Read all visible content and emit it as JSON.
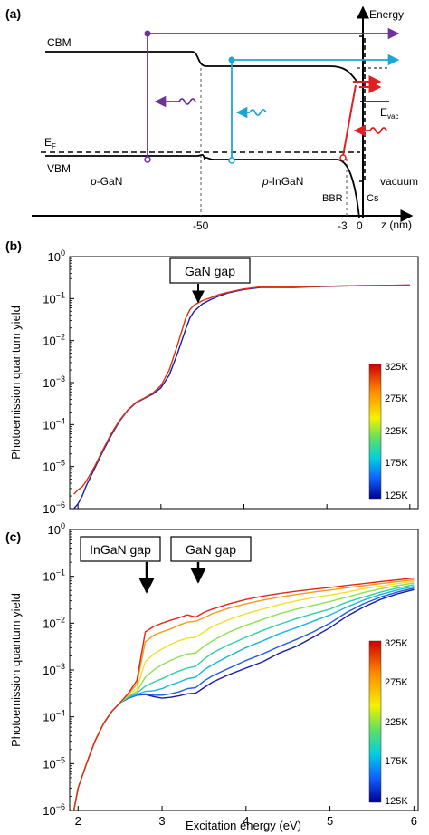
{
  "panel_labels": [
    "(a)",
    "(b)",
    "(c)"
  ],
  "diagram": {
    "band_labels": {
      "cbm": "CBM",
      "vbm": "VBM",
      "fermi_main": "E",
      "fermi_sub": "F"
    },
    "region_labels": {
      "pgan_prefix": "p",
      "pgan_rest": "-GaN",
      "pingan_prefix": "p",
      "pingan_rest": "-InGaN",
      "bbr": "BBR",
      "cs": "Cs",
      "vacuum": "vacuum"
    },
    "energy_axis_label": "Energy",
    "evac_main": "E",
    "evac_sub": "vac",
    "z_axis_label": "z (nm)",
    "z_ticks": [
      "-50",
      "-3",
      "0"
    ],
    "colors": {
      "gan": "#7030a0",
      "ingan": "#1aa7d8",
      "bbr": "#e02020",
      "band": "#000000"
    }
  },
  "chart_data": [
    {
      "type": "line",
      "panel": "(b)",
      "xlabel": "",
      "ylabel": "Photoemission quantum yield",
      "xlim": [
        1.9,
        6.1
      ],
      "ylim": [
        1e-06,
        1
      ],
      "yscale": "log",
      "yticks": [
        "10^-6",
        "10^-5",
        "10^-4",
        "10^-3",
        "10^-2",
        "10^-1",
        "10^0"
      ],
      "annotations": [
        {
          "text": "GaN gap",
          "x": 3.4
        }
      ],
      "colorbar": {
        "labels": [
          "325K",
          "275K",
          "225K",
          "175K",
          "125K"
        ]
      },
      "series": [
        {
          "color": "#1a1aa8",
          "x": [
            1.95,
            2.0,
            2.05,
            2.1,
            2.2,
            2.3,
            2.4,
            2.5,
            2.6,
            2.7,
            2.8,
            2.9,
            3.0,
            3.1,
            3.2,
            3.3,
            3.35,
            3.4,
            3.5,
            3.6,
            3.7,
            3.8,
            3.9,
            4.0,
            4.2,
            4.4,
            4.6,
            4.8,
            5.0,
            5.2,
            5.4,
            5.6,
            5.8,
            6.0
          ],
          "y": [
            1e-06,
            1.3e-06,
            2e-06,
            3.5e-06,
            9e-06,
            2.3e-05,
            5.5e-05,
            0.00012,
            0.00022,
            0.00033,
            0.00042,
            0.00053,
            0.00075,
            0.0015,
            0.005,
            0.019,
            0.035,
            0.05,
            0.075,
            0.095,
            0.115,
            0.135,
            0.15,
            0.165,
            0.185,
            0.185,
            0.185,
            0.19,
            0.195,
            0.2,
            0.203,
            0.205,
            0.207,
            0.21
          ]
        },
        {
          "color": "#e03010",
          "x": [
            1.95,
            2.0,
            2.05,
            2.1,
            2.2,
            2.3,
            2.4,
            2.5,
            2.6,
            2.7,
            2.8,
            2.9,
            3.0,
            3.1,
            3.2,
            3.3,
            3.35,
            3.4,
            3.5,
            3.6,
            3.7,
            3.8,
            3.9,
            4.0,
            4.2,
            4.4,
            4.6,
            4.8,
            5.0,
            5.2,
            5.4,
            5.6,
            5.8,
            6.0
          ],
          "y": [
            2.2e-06,
            2.8e-06,
            3.3e-06,
            4.5e-06,
            1e-05,
            2.5e-05,
            6e-05,
            0.000125,
            0.000225,
            0.00034,
            0.00043,
            0.00056,
            0.00085,
            0.002,
            0.008,
            0.035,
            0.055,
            0.07,
            0.09,
            0.105,
            0.125,
            0.14,
            0.155,
            0.17,
            0.19,
            0.188,
            0.19,
            0.192,
            0.197,
            0.2,
            0.203,
            0.205,
            0.207,
            0.21
          ]
        }
      ]
    },
    {
      "type": "line",
      "panel": "(c)",
      "xlabel": "Excitation energy (eV)",
      "ylabel": "Photoemission quantum yield",
      "xlim": [
        1.9,
        6.05
      ],
      "ylim": [
        1e-06,
        1
      ],
      "yscale": "log",
      "xticks": [
        2,
        3,
        4,
        5,
        6
      ],
      "yticks": [
        "10^-6",
        "10^-5",
        "10^-4",
        "10^-3",
        "10^-2",
        "10^-1",
        "10^0"
      ],
      "annotations": [
        {
          "text": "InGaN gap",
          "x": 2.83
        },
        {
          "text": "GaN gap",
          "x": 3.42
        }
      ],
      "colorbar": {
        "labels": [
          "325K",
          "275K",
          "225K",
          "175K",
          "125K"
        ]
      },
      "series": [
        {
          "color": "#1a1aa8",
          "x": [
            1.95,
            2.0,
            2.1,
            2.2,
            2.3,
            2.4,
            2.5,
            2.6,
            2.7,
            2.8,
            2.9,
            3.0,
            3.1,
            3.2,
            3.3,
            3.4,
            3.5,
            3.6,
            3.8,
            4.0,
            4.2,
            4.4,
            4.6,
            4.8,
            5.0,
            5.2,
            5.4,
            5.6,
            5.8,
            6.0
          ],
          "y": [
            1e-06,
            3e-06,
            1e-05,
            3e-05,
            7e-05,
            0.00013,
            0.0002,
            0.00025,
            0.00029,
            0.0003,
            0.00027,
            0.00025,
            0.00026,
            0.00028,
            0.00031,
            0.00032,
            0.00042,
            0.00055,
            0.0008,
            0.0011,
            0.0015,
            0.0023,
            0.0032,
            0.005,
            0.008,
            0.014,
            0.022,
            0.032,
            0.042,
            0.052
          ]
        },
        {
          "color": "#1e5ae6",
          "x": [
            1.95,
            2.0,
            2.1,
            2.2,
            2.3,
            2.4,
            2.5,
            2.6,
            2.7,
            2.8,
            2.9,
            3.0,
            3.1,
            3.2,
            3.3,
            3.4,
            3.5,
            3.6,
            3.8,
            4.0,
            4.2,
            4.4,
            4.6,
            4.8,
            5.0,
            5.2,
            5.4,
            5.6,
            5.8,
            6.0
          ],
          "y": [
            1e-06,
            3e-06,
            1e-05,
            3e-05,
            7e-05,
            0.00013,
            0.0002,
            0.00025,
            0.00029,
            0.00031,
            0.00029,
            0.00029,
            0.00031,
            0.00034,
            0.0004,
            0.00042,
            0.00058,
            0.00075,
            0.0011,
            0.0016,
            0.0022,
            0.0032,
            0.0045,
            0.0065,
            0.01,
            0.017,
            0.026,
            0.036,
            0.046,
            0.056
          ]
        },
        {
          "color": "#18b4e6",
          "x": [
            1.95,
            2.0,
            2.1,
            2.2,
            2.3,
            2.4,
            2.5,
            2.6,
            2.7,
            2.8,
            2.9,
            3.0,
            3.1,
            3.2,
            3.3,
            3.4,
            3.5,
            3.6,
            3.8,
            4.0,
            4.2,
            4.4,
            4.6,
            4.8,
            5.0,
            5.2,
            5.4,
            5.6,
            5.8,
            6.0
          ],
          "y": [
            1e-06,
            3e-06,
            1e-05,
            3e-05,
            7e-05,
            0.00013,
            0.0002,
            0.00026,
            0.0003,
            0.00035,
            0.00036,
            0.0004,
            0.00048,
            0.00055,
            0.00065,
            0.0007,
            0.001,
            0.0013,
            0.002,
            0.003,
            0.0042,
            0.006,
            0.008,
            0.011,
            0.015,
            0.022,
            0.031,
            0.041,
            0.051,
            0.061
          ]
        },
        {
          "color": "#30d0a0",
          "x": [
            1.95,
            2.0,
            2.1,
            2.2,
            2.3,
            2.4,
            2.5,
            2.6,
            2.7,
            2.8,
            2.9,
            3.0,
            3.1,
            3.2,
            3.3,
            3.4,
            3.5,
            3.6,
            3.8,
            4.0,
            4.2,
            4.4,
            4.6,
            4.8,
            5.0,
            5.2,
            5.4,
            5.6,
            5.8,
            6.0
          ],
          "y": [
            1e-06,
            3e-06,
            1e-05,
            3e-05,
            7e-05,
            0.00013,
            0.0002,
            0.00027,
            0.00032,
            0.00045,
            0.00055,
            0.00065,
            0.0008,
            0.00095,
            0.0011,
            0.0012,
            0.0017,
            0.0023,
            0.0035,
            0.005,
            0.007,
            0.0095,
            0.0125,
            0.016,
            0.02,
            0.028,
            0.036,
            0.046,
            0.056,
            0.066
          ]
        },
        {
          "color": "#90e050",
          "x": [
            1.95,
            2.0,
            2.1,
            2.2,
            2.3,
            2.4,
            2.5,
            2.6,
            2.7,
            2.8,
            2.9,
            3.0,
            3.1,
            3.2,
            3.3,
            3.4,
            3.5,
            3.6,
            3.8,
            4.0,
            4.2,
            4.4,
            4.6,
            4.8,
            5.0,
            5.2,
            5.4,
            5.6,
            5.8,
            6.0
          ],
          "y": [
            1e-06,
            3e-06,
            1e-05,
            3e-05,
            7e-05,
            0.00013,
            0.0002,
            0.00028,
            0.00035,
            0.0007,
            0.001,
            0.0013,
            0.0016,
            0.0019,
            0.0022,
            0.0023,
            0.0032,
            0.0042,
            0.0065,
            0.009,
            0.012,
            0.016,
            0.02,
            0.024,
            0.029,
            0.036,
            0.045,
            0.054,
            0.063,
            0.072
          ]
        },
        {
          "color": "#f0e030",
          "x": [
            1.95,
            2.0,
            2.1,
            2.2,
            2.3,
            2.4,
            2.5,
            2.6,
            2.7,
            2.8,
            2.9,
            3.0,
            3.1,
            3.2,
            3.3,
            3.4,
            3.5,
            3.6,
            3.8,
            4.0,
            4.2,
            4.4,
            4.6,
            4.8,
            5.0,
            5.2,
            5.4,
            5.6,
            5.8,
            6.0
          ],
          "y": [
            1e-06,
            3e-06,
            1e-05,
            3e-05,
            7e-05,
            0.00013,
            0.0002,
            0.0003,
            0.0004,
            0.0015,
            0.0022,
            0.0028,
            0.0035,
            0.0042,
            0.0048,
            0.005,
            0.0065,
            0.0085,
            0.012,
            0.016,
            0.02,
            0.025,
            0.03,
            0.035,
            0.04,
            0.046,
            0.054,
            0.062,
            0.07,
            0.078
          ]
        },
        {
          "color": "#f59a20",
          "x": [
            1.95,
            2.0,
            2.1,
            2.2,
            2.3,
            2.4,
            2.5,
            2.6,
            2.7,
            2.8,
            2.9,
            3.0,
            3.1,
            3.2,
            3.3,
            3.4,
            3.5,
            3.6,
            3.8,
            4.0,
            4.2,
            4.4,
            4.6,
            4.8,
            5.0,
            5.2,
            5.4,
            5.6,
            5.8,
            6.0
          ],
          "y": [
            1e-06,
            3e-06,
            1e-05,
            3e-05,
            7e-05,
            0.00013,
            0.0002,
            0.00031,
            0.0005,
            0.004,
            0.0055,
            0.0065,
            0.0075,
            0.009,
            0.0105,
            0.011,
            0.013,
            0.016,
            0.021,
            0.026,
            0.031,
            0.036,
            0.041,
            0.046,
            0.051,
            0.057,
            0.063,
            0.07,
            0.077,
            0.084
          ]
        },
        {
          "color": "#e02818",
          "x": [
            1.95,
            2.0,
            2.1,
            2.2,
            2.3,
            2.4,
            2.5,
            2.6,
            2.7,
            2.8,
            2.9,
            3.0,
            3.1,
            3.2,
            3.3,
            3.4,
            3.5,
            3.6,
            3.8,
            4.0,
            4.2,
            4.4,
            4.6,
            4.8,
            5.0,
            5.2,
            5.4,
            5.6,
            5.8,
            6.0
          ],
          "y": [
            1e-06,
            3e-06,
            1e-05,
            3e-05,
            7e-05,
            0.00013,
            0.0002,
            0.00032,
            0.0006,
            0.0065,
            0.0085,
            0.01,
            0.0115,
            0.013,
            0.015,
            0.0135,
            0.017,
            0.02,
            0.026,
            0.032,
            0.038,
            0.043,
            0.048,
            0.053,
            0.058,
            0.064,
            0.07,
            0.077,
            0.084,
            0.092
          ]
        }
      ]
    }
  ]
}
